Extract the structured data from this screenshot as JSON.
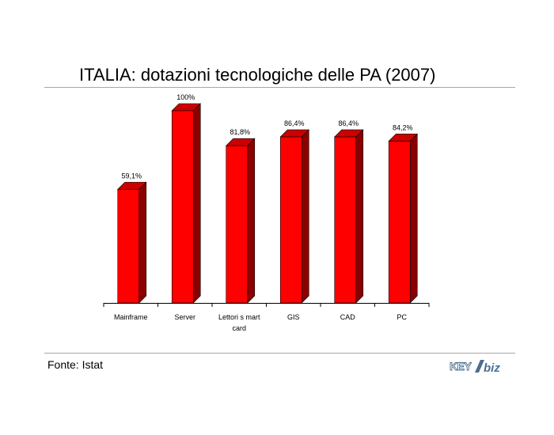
{
  "title": "ITALIA: dotazioni tecnologiche delle PA (2007)",
  "source": "Fonte: Istat",
  "logo": {
    "left": "KEY",
    "right": "biz",
    "full": "KEY4biz"
  },
  "colors": {
    "bar_front": "#ff0000",
    "bar_side": "#8a0000",
    "bar_top": "#cc0000",
    "axis": "#000000"
  },
  "chart_data": {
    "type": "bar",
    "style": "3d",
    "categories": [
      "Mainframe",
      "Server",
      "Lettori smart card",
      "GIS",
      "CAD",
      "PC"
    ],
    "category_lines": [
      [
        "Mainframe"
      ],
      [
        "Server"
      ],
      [
        "Lettori s mart",
        "card"
      ],
      [
        "GIS"
      ],
      [
        "CAD"
      ],
      [
        "PC"
      ]
    ],
    "values": [
      59.1,
      100,
      81.8,
      86.4,
      86.4,
      84.2
    ],
    "data_labels": [
      "59,1%",
      "100%",
      "81,8%",
      "86,4%",
      "86,4%",
      "84,2%"
    ],
    "ylim": [
      0,
      100
    ],
    "grid": false,
    "legend": false
  }
}
